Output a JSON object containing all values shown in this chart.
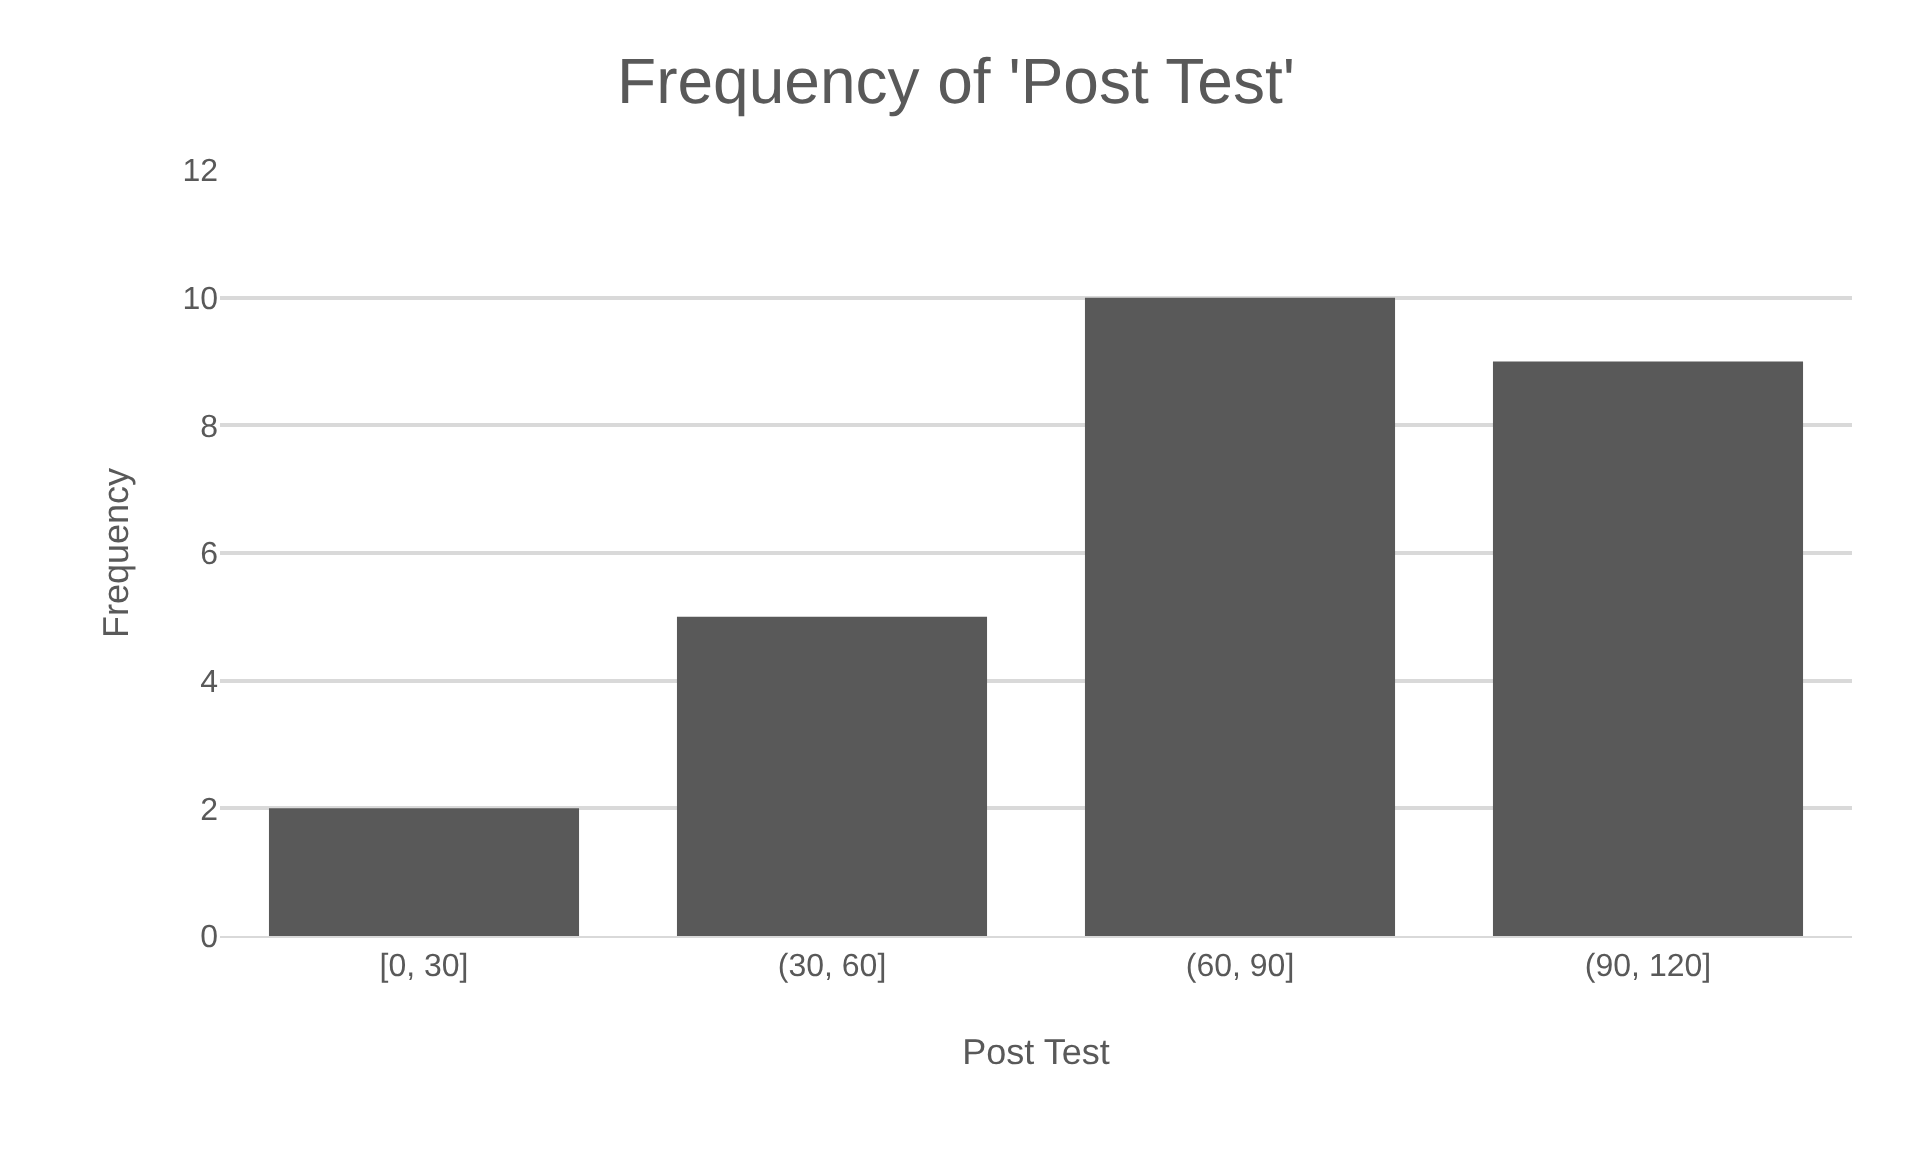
{
  "chart_data": {
    "type": "bar",
    "title": "Frequency of 'Post Test'",
    "xlabel": "Post Test",
    "ylabel": "Frequency",
    "categories": [
      "[0, 30]",
      "(30, 60]",
      "(60, 90]",
      "(90, 120]"
    ],
    "values": [
      2,
      5,
      10,
      9
    ],
    "color": "#595959",
    "ylim": [
      0,
      12
    ],
    "yticks": [
      0,
      2,
      4,
      6,
      8,
      10,
      12
    ],
    "grid": "y"
  }
}
